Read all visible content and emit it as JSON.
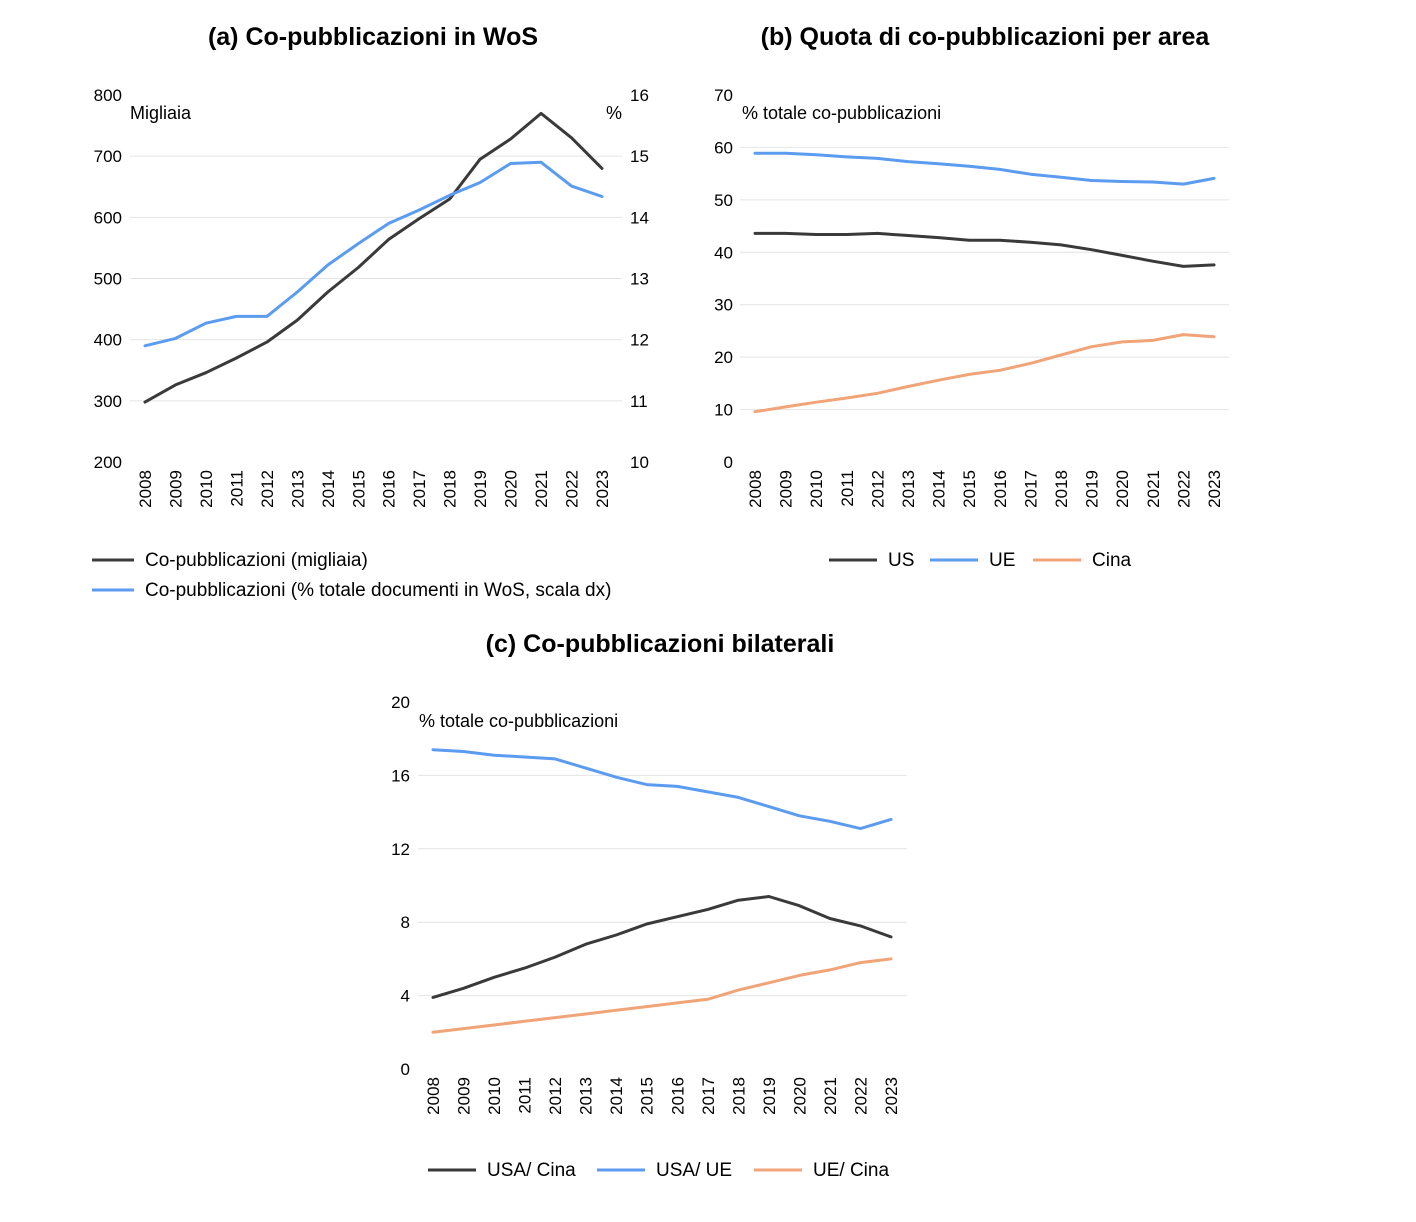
{
  "chart_data": [
    {
      "type": "line",
      "title": "(a) Co-pubblicazioni in WoS",
      "left_unit": "Migliaia",
      "right_unit": "%",
      "ylim": [
        200,
        800
      ],
      "yticks": [
        200,
        300,
        400,
        500,
        600,
        700,
        800
      ],
      "y2lim": [
        10,
        16
      ],
      "y2ticks": [
        10,
        11,
        12,
        13,
        14,
        15,
        16
      ],
      "categories": [
        "2008",
        "2009",
        "2010",
        "2011",
        "2012",
        "2013",
        "2014",
        "2015",
        "2016",
        "2017",
        "2018",
        "2019",
        "2020",
        "2021",
        "2022",
        "2023"
      ],
      "grid": true,
      "legend_position": "bottom",
      "series": [
        {
          "name": "Co-pubblicazioni (migliaia)",
          "axis": "left",
          "color": "#3a3a3a",
          "values": [
            298,
            326,
            346,
            370,
            396,
            432,
            478,
            518,
            564,
            598,
            630,
            695,
            728,
            770,
            730,
            680
          ]
        },
        {
          "name": "Co-pubblicazioni (% totale documenti in WoS, scala dx)",
          "axis": "right",
          "color": "#5b9bf0",
          "values": [
            11.9,
            12.02,
            12.27,
            12.38,
            12.38,
            12.78,
            13.22,
            13.57,
            13.9,
            14.12,
            14.36,
            14.57,
            14.88,
            14.9,
            14.51,
            14.34
          ]
        }
      ]
    },
    {
      "type": "line",
      "title": "(b) Quota di co-pubblicazioni per area",
      "left_unit": "% totale co-pubblicazioni",
      "ylim": [
        0,
        70
      ],
      "yticks": [
        0,
        10,
        20,
        30,
        40,
        50,
        60,
        70
      ],
      "categories": [
        "2008",
        "2009",
        "2010",
        "2011",
        "2012",
        "2013",
        "2014",
        "2015",
        "2016",
        "2017",
        "2018",
        "2019",
        "2020",
        "2021",
        "2022",
        "2023"
      ],
      "grid": true,
      "legend_position": "bottom",
      "series": [
        {
          "name": "US",
          "color": "#3a3a3a",
          "values": [
            43.6,
            43.6,
            43.4,
            43.4,
            43.6,
            43.2,
            42.8,
            42.3,
            42.3,
            41.9,
            41.4,
            40.5,
            39.4,
            38.3,
            37.3,
            37.6
          ]
        },
        {
          "name": "UE",
          "color": "#5b9bf0",
          "values": [
            58.9,
            58.9,
            58.6,
            58.2,
            57.9,
            57.3,
            56.9,
            56.4,
            55.8,
            54.9,
            54.3,
            53.7,
            53.5,
            53.4,
            53.0,
            54.1
          ]
        },
        {
          "name": "Cina",
          "color": "#f0a478",
          "values": [
            9.6,
            10.5,
            11.4,
            12.2,
            13.1,
            14.4,
            15.6,
            16.7,
            17.5,
            18.8,
            20.4,
            22.0,
            22.9,
            23.2,
            24.3,
            23.9
          ]
        }
      ]
    },
    {
      "type": "line",
      "title": "(c) Co-pubblicazioni bilaterali",
      "left_unit": "% totale co-pubblicazioni",
      "ylim": [
        0,
        20
      ],
      "yticks": [
        0,
        4,
        8,
        12,
        16,
        20
      ],
      "categories": [
        "2008",
        "2009",
        "2010",
        "2011",
        "2012",
        "2013",
        "2014",
        "2015",
        "2016",
        "2017",
        "2018",
        "2019",
        "2020",
        "2021",
        "2022",
        "2023"
      ],
      "grid": true,
      "legend_position": "bottom",
      "series": [
        {
          "name": "USA/ Cina",
          "color": "#3a3a3a",
          "values": [
            3.9,
            4.4,
            5.0,
            5.5,
            6.1,
            6.8,
            7.3,
            7.9,
            8.3,
            8.7,
            9.2,
            9.4,
            8.9,
            8.2,
            7.8,
            7.2
          ]
        },
        {
          "name": "USA/ UE",
          "color": "#5b9bf0",
          "values": [
            17.4,
            17.3,
            17.1,
            17.0,
            16.9,
            16.4,
            15.9,
            15.5,
            15.4,
            15.1,
            14.8,
            14.3,
            13.8,
            13.5,
            13.1,
            13.6
          ]
        },
        {
          "name": "UE/ Cina",
          "color": "#f0a478",
          "values": [
            2.0,
            2.2,
            2.4,
            2.6,
            2.8,
            3.0,
            3.2,
            3.4,
            3.6,
            3.8,
            4.3,
            4.7,
            5.1,
            5.4,
            5.8,
            6.0
          ]
        }
      ]
    }
  ]
}
